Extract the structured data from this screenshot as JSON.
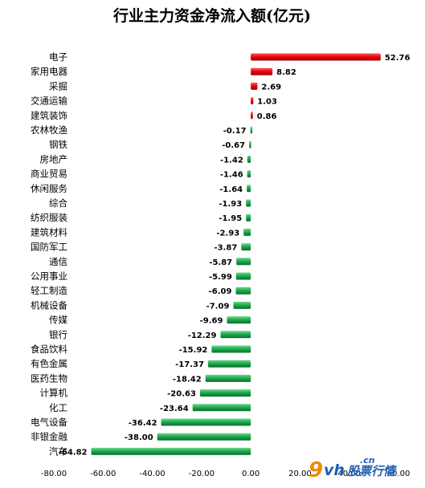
{
  "chart_data": {
    "type": "bar",
    "orientation": "horizontal",
    "title": "行业主力资金净流入额(亿元)",
    "categories": [
      "电子",
      "家用电器",
      "采掘",
      "交通运输",
      "建筑装饰",
      "农林牧渔",
      "钢铁",
      "房地产",
      "商业贸易",
      "休闲服务",
      "综合",
      "纺织服装",
      "建筑材料",
      "国防军工",
      "通信",
      "公用事业",
      "轻工制造",
      "机械设备",
      "传媒",
      "银行",
      "食品饮料",
      "有色金属",
      "医药生物",
      "计算机",
      "化工",
      "电气设备",
      "非银金融",
      "汽车"
    ],
    "values": [
      52.76,
      8.82,
      2.69,
      1.03,
      0.86,
      -0.17,
      -0.67,
      -1.42,
      -1.46,
      -1.64,
      -1.93,
      -1.95,
      -2.93,
      -3.87,
      -5.87,
      -5.99,
      -6.09,
      -7.09,
      -9.69,
      -12.29,
      -15.92,
      -17.37,
      -18.42,
      -20.63,
      -23.64,
      -36.42,
      -38.0,
      -64.82
    ],
    "value_labels": [
      "52.76",
      "8.82",
      "2.69",
      "1.03",
      "0.86",
      "-0.17",
      "-0.67",
      "-1.42",
      "-1.46",
      "-1.64",
      "-1.93",
      "-1.95",
      "-2.93",
      "-3.87",
      "-5.87",
      "-5.99",
      "-6.09",
      "-7.09",
      "-9.69",
      "-12.29",
      "-15.92",
      "-17.37",
      "-18.42",
      "-20.63",
      "-23.64",
      "-36.42",
      "-38.00",
      "-64.82"
    ],
    "x_ticks": [
      "-80.00",
      "-60.00",
      "-40.00",
      "-20.00",
      "0.00",
      "20.00",
      "40.00",
      "60.00"
    ],
    "xlim": [
      -80,
      60
    ],
    "grid": false,
    "colors": {
      "positive": "#e8000b",
      "negative": "#1aa64a"
    }
  },
  "watermark": {
    "num": "9",
    "brand": "vh",
    "domain": ".cn",
    "text": "股票行情"
  }
}
